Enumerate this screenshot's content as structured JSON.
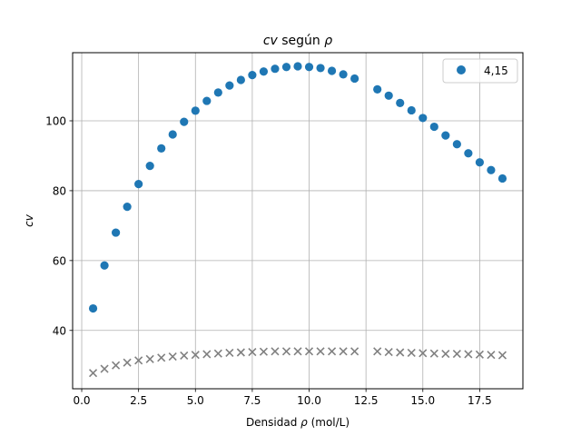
{
  "chart_data": {
    "type": "scatter",
    "title_main": "cv",
    "title_mid": " según ",
    "title_sym": "ρ",
    "xlabel_pre": "Densidad ",
    "xlabel_sym": "ρ",
    "xlabel_post": " (mol/L)",
    "ylabel": "cv",
    "xlim": [
      -0.4,
      19.4
    ],
    "ylim": [
      23.3,
      119.5
    ],
    "xticks": [
      0.0,
      2.5,
      5.0,
      7.5,
      10.0,
      12.5,
      15.0,
      17.5
    ],
    "xtick_labels": [
      "0.0",
      "2.5",
      "5.0",
      "7.5",
      "10.0",
      "12.5",
      "15.0",
      "17.5"
    ],
    "yticks": [
      40,
      60,
      80,
      100
    ],
    "ytick_labels": [
      "40",
      "60",
      "80",
      "100"
    ],
    "grid": true,
    "legend_position": "top-right",
    "series": [
      {
        "name": "4,15",
        "marker": "circle",
        "color": "#1f77b4",
        "x": [
          0.5,
          1.0,
          1.5,
          2.0,
          2.5,
          3.0,
          3.5,
          4.0,
          4.5,
          5.0,
          5.5,
          6.0,
          6.5,
          7.0,
          7.5,
          8.0,
          8.5,
          9.0,
          9.5,
          10.0,
          10.5,
          11.0,
          11.5,
          12.0,
          13.0,
          13.5,
          14.0,
          14.5,
          15.0,
          15.5,
          16.0,
          16.5,
          17.0,
          17.5,
          18.0,
          18.5
        ],
        "y": [
          46.3,
          58.6,
          68.0,
          75.4,
          81.9,
          87.1,
          92.1,
          96.1,
          99.7,
          102.9,
          105.7,
          108.1,
          110.1,
          111.7,
          113.1,
          114.1,
          114.9,
          115.4,
          115.6,
          115.4,
          115.1,
          114.3,
          113.3,
          112.1,
          109.0,
          107.2,
          105.1,
          103.0,
          100.8,
          98.3,
          95.8,
          93.3,
          90.7,
          88.1,
          85.9,
          83.5
        ]
      },
      {
        "marker": "x",
        "color": "#808080",
        "x": [
          0.5,
          1.0,
          1.5,
          2.0,
          2.5,
          3.0,
          3.5,
          4.0,
          4.5,
          5.0,
          5.5,
          6.0,
          6.5,
          7.0,
          7.5,
          8.0,
          8.5,
          9.0,
          9.5,
          10.0,
          10.5,
          11.0,
          11.5,
          12.0,
          13.0,
          13.5,
          14.0,
          14.5,
          15.0,
          15.5,
          16.0,
          16.5,
          17.0,
          17.5,
          18.0,
          18.5
        ],
        "y": [
          27.8,
          29.0,
          30.0,
          30.8,
          31.4,
          31.8,
          32.2,
          32.5,
          32.8,
          33.0,
          33.2,
          33.4,
          33.6,
          33.7,
          33.8,
          33.9,
          34.0,
          34.0,
          34.0,
          34.0,
          34.0,
          34.0,
          34.0,
          34.0,
          34.0,
          33.8,
          33.7,
          33.6,
          33.5,
          33.4,
          33.3,
          33.3,
          33.2,
          33.1,
          33.0,
          32.9
        ]
      }
    ]
  }
}
